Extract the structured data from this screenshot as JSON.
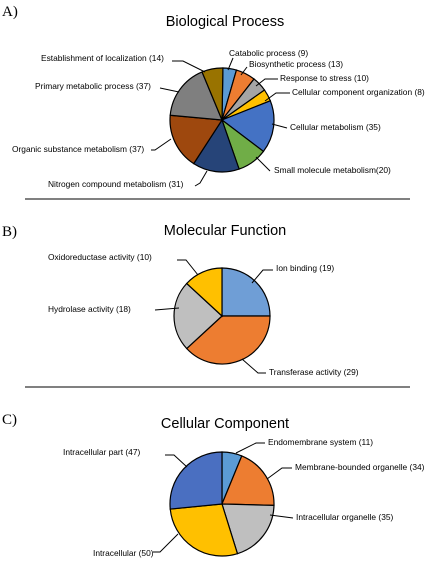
{
  "chart_data": [
    {
      "type": "pie",
      "panel": "A)",
      "title": "Biological Process",
      "slices": [
        {
          "label": "Catabolic process (9)",
          "value": 9,
          "color": "#5b9bd5"
        },
        {
          "label": "Biosynthetic process (13)",
          "value": 13,
          "color": "#ed7d31"
        },
        {
          "label": "Response to stress (10)",
          "value": 10,
          "color": "#a5a5a5"
        },
        {
          "label": "Cellular component organization (8)",
          "value": 8,
          "color": "#ffc000"
        },
        {
          "label": "Cellular metabolism (35)",
          "value": 35,
          "color": "#4472c4"
        },
        {
          "label": "Small molecule metabolism(20)",
          "value": 20,
          "color": "#70ad47"
        },
        {
          "label": "Nitrogen compound metabolism (31)",
          "value": 31,
          "color": "#264478"
        },
        {
          "label": "Organic substance metabolism (37)",
          "value": 37,
          "color": "#9e480e"
        },
        {
          "label": "Primary metabolic process (37)",
          "value": 37,
          "color": "#7f7f7f"
        },
        {
          "label": "Establishment of localization (14)",
          "value": 14,
          "color": "#997300"
        }
      ]
    },
    {
      "type": "pie",
      "panel": "B)",
      "title": "Molecular Function",
      "slices": [
        {
          "label": "Ion binding (19)",
          "value": 19,
          "color": "#6f9ed6"
        },
        {
          "label": "Transferase activity (29)",
          "value": 29,
          "color": "#ed7d31"
        },
        {
          "label": "Hydrolase activity (18)",
          "value": 18,
          "color": "#bfbfbf"
        },
        {
          "label": "Oxidoreductase activity (10)",
          "value": 10,
          "color": "#ffc000"
        }
      ]
    },
    {
      "type": "pie",
      "panel": "C)",
      "title": "Cellular Component",
      "slices": [
        {
          "label": "Endomembrane system (11)",
          "value": 11,
          "color": "#5b9bd5"
        },
        {
          "label": "Membrane-bounded organelle (34)",
          "value": 34,
          "color": "#ed7d31"
        },
        {
          "label": "Intracellular organelle (35)",
          "value": 35,
          "color": "#bfbfbf"
        },
        {
          "label": "Intracellular (50)",
          "value": 50,
          "color": "#ffc000"
        },
        {
          "label": "Intracellular part (47)",
          "value": 47,
          "color": "#4a6fc1"
        }
      ]
    }
  ]
}
